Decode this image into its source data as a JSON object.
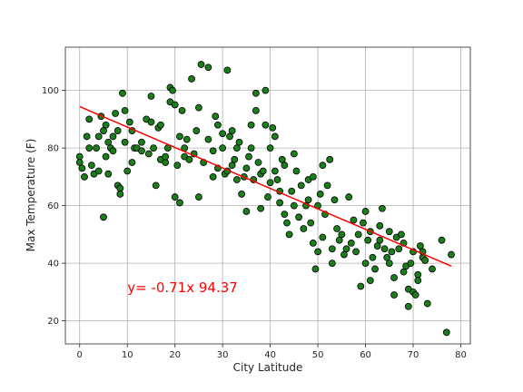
{
  "chart_data": {
    "type": "scatter",
    "title": "",
    "xlabel": "City Latitude",
    "ylabel": "Max Temperature (F)",
    "xlim": [
      -3,
      82
    ],
    "ylim": [
      12,
      115
    ],
    "xticks": [
      0,
      10,
      20,
      30,
      40,
      50,
      60,
      70,
      80
    ],
    "yticks": [
      20,
      40,
      60,
      80,
      100
    ],
    "grid": true,
    "colors": {
      "points": "#1a7f1a",
      "edges": "#000000",
      "regression": "#ff0000",
      "annotation": "#ff0000"
    },
    "regression": {
      "slope": -0.71,
      "intercept": 94.37,
      "x_range": [
        0,
        78
      ]
    },
    "annotation": {
      "text": "y= -0.71x 94.37",
      "x": 10,
      "y": 30
    },
    "points": [
      [
        0,
        77
      ],
      [
        0,
        75
      ],
      [
        0.5,
        73
      ],
      [
        1,
        70
      ],
      [
        1.5,
        84
      ],
      [
        2,
        80
      ],
      [
        2,
        90
      ],
      [
        2.5,
        74
      ],
      [
        3,
        71
      ],
      [
        3.5,
        80
      ],
      [
        4,
        72
      ],
      [
        4,
        84
      ],
      [
        4.5,
        91
      ],
      [
        5,
        56
      ],
      [
        5,
        86
      ],
      [
        5.5,
        88
      ],
      [
        5.5,
        77
      ],
      [
        6,
        71
      ],
      [
        6,
        82
      ],
      [
        6.5,
        80
      ],
      [
        7,
        84
      ],
      [
        7,
        79
      ],
      [
        7.5,
        92
      ],
      [
        8,
        86
      ],
      [
        8,
        67
      ],
      [
        8.5,
        66
      ],
      [
        8.5,
        64
      ],
      [
        9,
        99
      ],
      [
        9.5,
        82
      ],
      [
        9.5,
        93
      ],
      [
        10,
        72
      ],
      [
        10.5,
        89
      ],
      [
        11,
        86
      ],
      [
        11,
        75
      ],
      [
        11.5,
        80
      ],
      [
        12,
        80
      ],
      [
        13,
        79
      ],
      [
        13,
        82
      ],
      [
        14,
        90
      ],
      [
        14.5,
        78
      ],
      [
        15,
        89
      ],
      [
        15,
        98
      ],
      [
        15.5,
        80
      ],
      [
        16,
        67
      ],
      [
        16.5,
        87
      ],
      [
        17,
        88
      ],
      [
        17,
        76
      ],
      [
        18,
        75
      ],
      [
        18,
        77
      ],
      [
        18.5,
        80
      ],
      [
        19,
        96
      ],
      [
        19,
        101
      ],
      [
        19.5,
        100
      ],
      [
        20,
        95
      ],
      [
        20,
        63
      ],
      [
        20.5,
        74
      ],
      [
        21,
        84
      ],
      [
        21,
        61
      ],
      [
        21.5,
        93
      ],
      [
        22,
        80
      ],
      [
        22,
        77
      ],
      [
        22.5,
        83
      ],
      [
        23,
        76
      ],
      [
        23.5,
        104
      ],
      [
        24,
        78
      ],
      [
        24.5,
        86
      ],
      [
        25,
        94
      ],
      [
        25,
        63
      ],
      [
        25.5,
        109
      ],
      [
        26,
        75
      ],
      [
        27,
        108
      ],
      [
        27,
        83
      ],
      [
        28,
        79
      ],
      [
        28,
        70
      ],
      [
        28.5,
        91
      ],
      [
        29,
        73
      ],
      [
        29,
        88
      ],
      [
        30,
        80
      ],
      [
        30,
        85
      ],
      [
        30.5,
        71
      ],
      [
        31,
        72
      ],
      [
        31,
        107
      ],
      [
        31.5,
        84
      ],
      [
        32,
        74
      ],
      [
        32,
        86
      ],
      [
        32.5,
        76
      ],
      [
        33,
        80
      ],
      [
        33,
        69
      ],
      [
        33.5,
        82
      ],
      [
        34,
        64
      ],
      [
        34.5,
        70
      ],
      [
        35,
        58
      ],
      [
        35,
        73
      ],
      [
        35.5,
        77
      ],
      [
        36,
        80
      ],
      [
        36,
        88
      ],
      [
        36.5,
        69
      ],
      [
        37,
        93
      ],
      [
        37,
        99
      ],
      [
        37.5,
        75
      ],
      [
        38,
        71
      ],
      [
        38,
        59
      ],
      [
        38.5,
        72
      ],
      [
        39,
        100
      ],
      [
        39,
        88
      ],
      [
        39.5,
        63
      ],
      [
        40,
        68
      ],
      [
        40,
        80
      ],
      [
        40.5,
        87
      ],
      [
        41,
        84
      ],
      [
        41,
        72
      ],
      [
        41.5,
        69
      ],
      [
        42,
        61
      ],
      [
        42,
        65
      ],
      [
        42.5,
        76
      ],
      [
        43,
        74
      ],
      [
        43,
        57
      ],
      [
        43.5,
        54
      ],
      [
        44,
        50
      ],
      [
        44.5,
        65
      ],
      [
        45,
        60
      ],
      [
        45,
        78
      ],
      [
        45.5,
        72
      ],
      [
        46,
        56
      ],
      [
        46.5,
        67
      ],
      [
        47,
        52
      ],
      [
        47.5,
        60
      ],
      [
        48,
        62
      ],
      [
        48,
        69
      ],
      [
        48.5,
        54
      ],
      [
        49,
        47
      ],
      [
        49,
        70
      ],
      [
        49.5,
        38
      ],
      [
        50,
        44
      ],
      [
        50,
        60
      ],
      [
        50.5,
        64
      ],
      [
        51,
        49
      ],
      [
        51,
        74
      ],
      [
        51.5,
        57
      ],
      [
        52,
        67
      ],
      [
        52.5,
        76
      ],
      [
        53,
        40
      ],
      [
        53,
        45
      ],
      [
        53.5,
        62
      ],
      [
        54,
        52
      ],
      [
        54.5,
        48
      ],
      [
        55,
        50
      ],
      [
        55.5,
        43
      ],
      [
        56,
        45
      ],
      [
        56.5,
        63
      ],
      [
        57,
        47
      ],
      [
        57.5,
        55
      ],
      [
        58,
        44
      ],
      [
        58.5,
        50
      ],
      [
        59,
        32
      ],
      [
        59.5,
        54
      ],
      [
        60,
        40
      ],
      [
        60,
        58
      ],
      [
        60.5,
        48
      ],
      [
        61,
        51
      ],
      [
        61,
        34
      ],
      [
        61.5,
        42
      ],
      [
        62,
        38
      ],
      [
        62.5,
        46
      ],
      [
        63,
        48
      ],
      [
        63,
        53
      ],
      [
        63.5,
        59
      ],
      [
        64,
        45
      ],
      [
        64.5,
        42
      ],
      [
        65,
        40
      ],
      [
        65,
        51
      ],
      [
        65.5,
        44
      ],
      [
        66,
        35
      ],
      [
        66,
        29
      ],
      [
        66.5,
        49
      ],
      [
        67,
        45
      ],
      [
        67.5,
        50
      ],
      [
        68,
        47
      ],
      [
        68,
        37
      ],
      [
        68.5,
        39
      ],
      [
        69,
        31
      ],
      [
        69,
        25
      ],
      [
        69.5,
        40
      ],
      [
        70,
        44
      ],
      [
        70,
        30
      ],
      [
        70.5,
        29
      ],
      [
        71,
        36
      ],
      [
        71,
        34
      ],
      [
        71.5,
        46
      ],
      [
        72,
        42
      ],
      [
        72,
        44
      ],
      [
        72.5,
        41
      ],
      [
        73,
        26
      ],
      [
        74,
        38
      ],
      [
        76,
        48
      ],
      [
        77,
        16
      ],
      [
        78,
        43
      ]
    ]
  }
}
